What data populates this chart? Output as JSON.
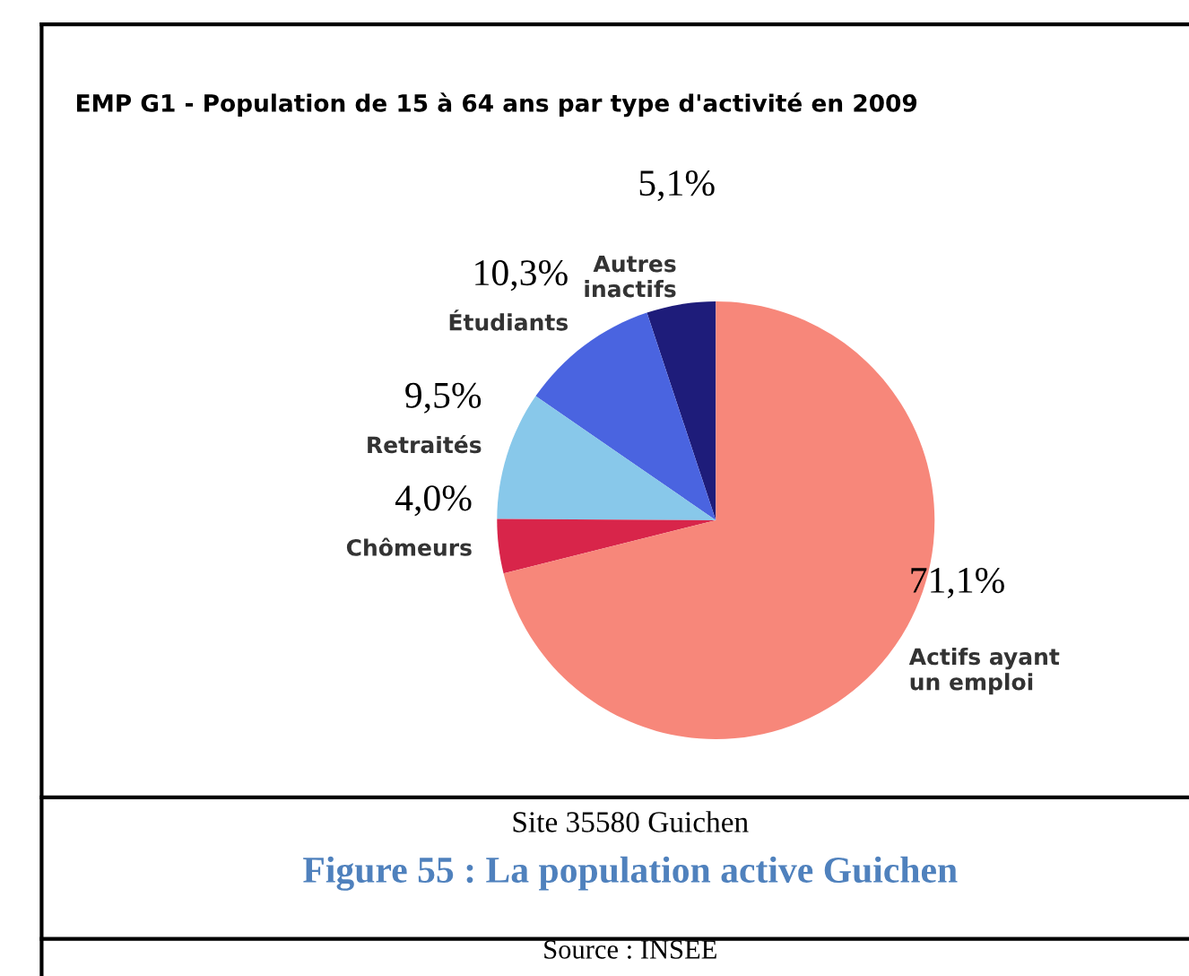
{
  "chart_data": {
    "type": "pie",
    "title": "EMP G1 - Population de 15 à 64 ans par type d'activité en 2009",
    "subtitle": "Figure 55 : La population active Guichen",
    "categories": [
      "Autres inactifs",
      "Étudiants",
      "Retraités",
      "Chômeurs",
      "Actifs ayant un emploi"
    ],
    "values": [
      5.1,
      10.3,
      9.5,
      4.0,
      71.1
    ],
    "colors": [
      "#1e1c7a",
      "#4a64e0",
      "#88c8ea",
      "#d8254a",
      "#f7877a"
    ],
    "value_labels": [
      "5,1%",
      "10,3%",
      "9,5%",
      "4,0%",
      "71,1%"
    ],
    "annotations": [
      "Site 35580 Guichen",
      "Source : INSEE"
    ],
    "legend": false
  }
}
